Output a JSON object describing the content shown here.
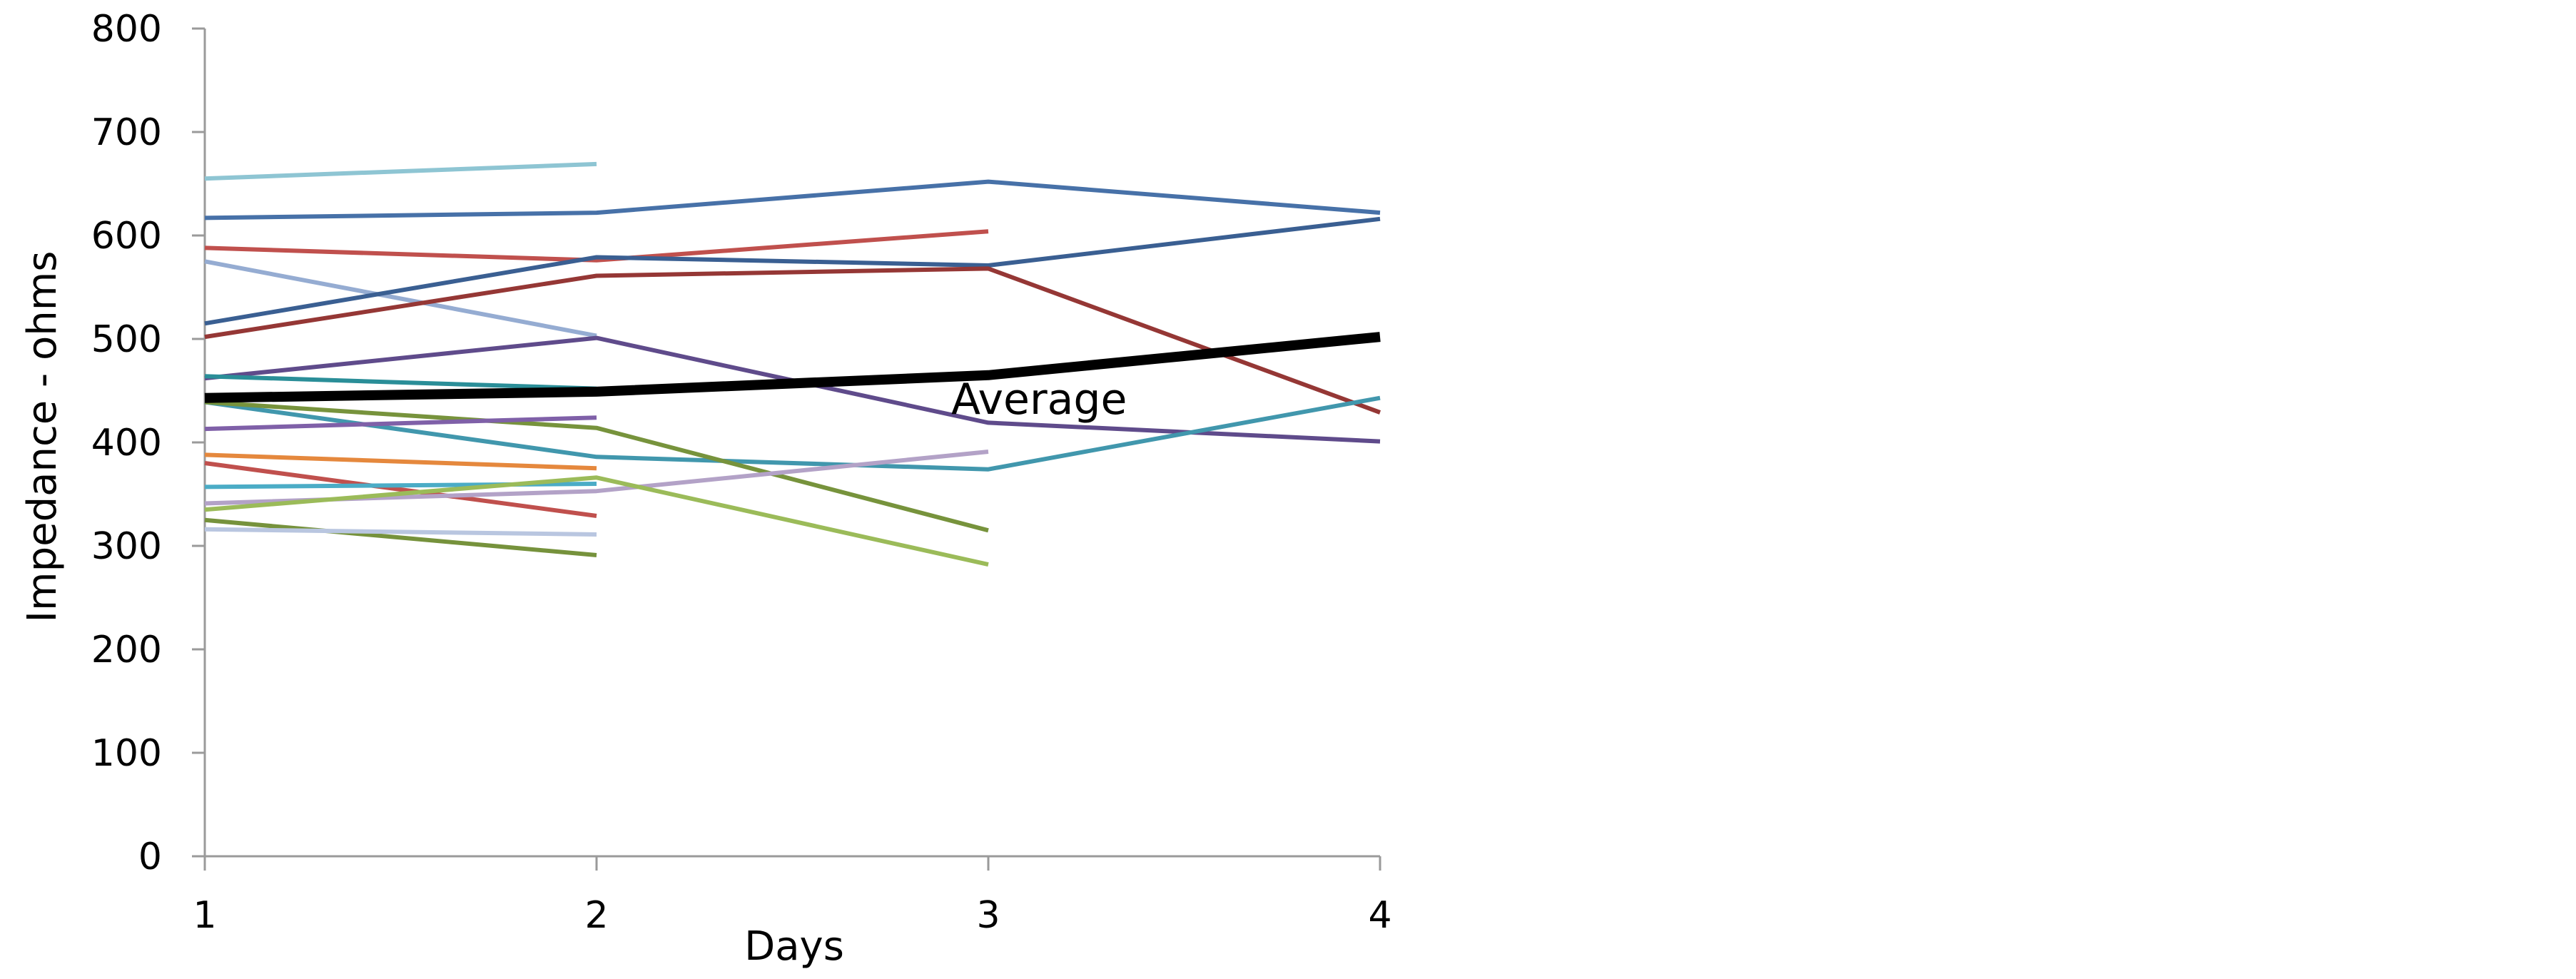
{
  "chart_data": {
    "type": "line",
    "xlabel": "Days",
    "ylabel": "Impedance - ohms",
    "x": [
      1,
      2,
      3,
      4
    ],
    "xticks": [
      "1",
      "2",
      "3",
      "4"
    ],
    "ylim": [
      0,
      800
    ],
    "yticks": [
      "0",
      "100",
      "200",
      "300",
      "400",
      "500",
      "600",
      "700",
      "800"
    ],
    "grid": false,
    "legend": "none",
    "annotation": "Average",
    "series": [
      {
        "values": [
          655,
          669,
          null,
          null
        ],
        "color": "#8ec5d3"
      },
      {
        "values": [
          617,
          622,
          652,
          622
        ],
        "color": "#4771a8"
      },
      {
        "values": [
          588,
          576,
          604,
          null
        ],
        "color": "#c0504d"
      },
      {
        "values": [
          575,
          503,
          null,
          null
        ],
        "color": "#95acd2"
      },
      {
        "values": [
          515,
          579,
          571,
          616
        ],
        "color": "#3a5f92"
      },
      {
        "values": [
          502,
          561,
          568,
          429
        ],
        "color": "#953735"
      },
      {
        "values": [
          462,
          501,
          419,
          401
        ],
        "color": "#5f4b8b"
      },
      {
        "values": [
          464,
          452,
          null,
          null
        ],
        "color": "#2a8e98"
      },
      {
        "values": [
          439,
          386,
          374,
          443
        ],
        "color": "#4197ad"
      },
      {
        "values": [
          439,
          414,
          315,
          null
        ],
        "color": "#77933c"
      },
      {
        "values": [
          413,
          424,
          null,
          null
        ],
        "color": "#7f60a8"
      },
      {
        "values": [
          388,
          375,
          null,
          null
        ],
        "color": "#e5883d"
      },
      {
        "values": [
          380,
          329,
          null,
          null
        ],
        "color": "#c0504d"
      },
      {
        "values": [
          357,
          360,
          null,
          null
        ],
        "color": "#4bacc6"
      },
      {
        "values": [
          341,
          353,
          391,
          null
        ],
        "color": "#b3a2c7"
      },
      {
        "values": [
          335,
          366,
          282,
          null
        ],
        "color": "#9bbb59"
      },
      {
        "values": [
          325,
          291,
          null,
          null
        ],
        "color": "#76923c"
      },
      {
        "values": [
          316,
          311,
          null,
          null
        ],
        "color": "#b9c6e0"
      },
      {
        "values": [
          443,
          449,
          465,
          502
        ],
        "color": "#000000",
        "thick": true
      }
    ]
  }
}
